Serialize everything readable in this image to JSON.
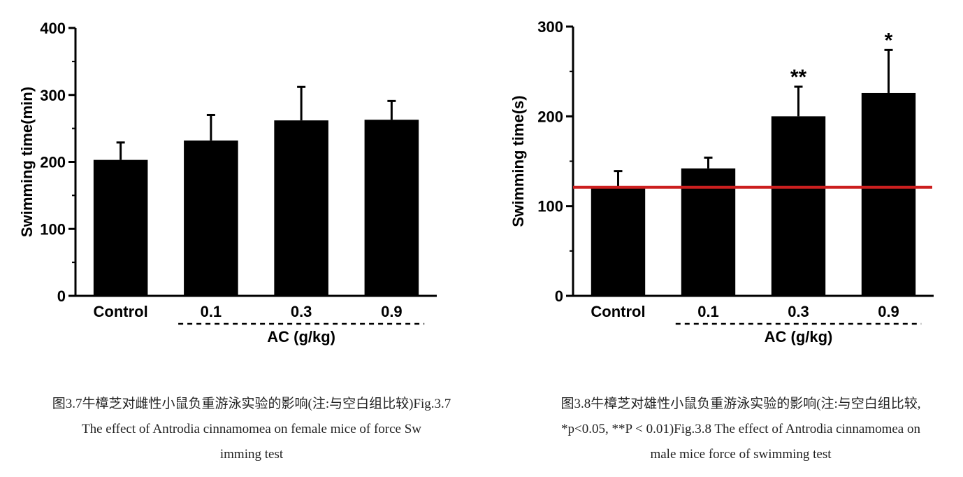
{
  "chart_data": [
    {
      "type": "bar",
      "categories": [
        "Control",
        "0.1",
        "0.3",
        "0.9"
      ],
      "values": [
        203,
        232,
        262,
        263
      ],
      "error": [
        26,
        38,
        50,
        28
      ],
      "significance": [
        "",
        "",
        "",
        ""
      ],
      "ylabel": "Swimming time(min)",
      "group_label": "AC (g/kg)",
      "ylim": [
        0,
        400
      ],
      "yticks": [
        0,
        100,
        200,
        300,
        400
      ],
      "bar_color": "#000000",
      "grid": false
    },
    {
      "type": "bar",
      "categories": [
        "Control",
        "0.1",
        "0.3",
        "0.9"
      ],
      "values": [
        121,
        142,
        200,
        226
      ],
      "error": [
        18,
        12,
        33,
        48
      ],
      "significance": [
        "",
        "",
        "**",
        "*"
      ],
      "ylabel": "Swimming time(s)",
      "group_label": "AC (g/kg)",
      "ylim": [
        0,
        300
      ],
      "yticks": [
        0,
        100,
        200,
        300
      ],
      "reference_line": {
        "value": 121,
        "color": "#cc1f1f"
      },
      "bar_color": "#000000",
      "grid": false
    }
  ],
  "captions": {
    "left": {
      "line1": "图3.7牛樟芝对雌性小鼠负重游泳实验的影响(注:与空白组比较)Fig.3.7",
      "line2": "The effect of Antrodia cinnamomea on female mice of force Sw",
      "line3": "imming test"
    },
    "right": {
      "line1": "图3.8牛樟芝对雄性小鼠负重游泳实验的影响(注:与空白组比较,",
      "line2": "*p<0.05, **P < 0.01)Fig.3.8 The effect of Antrodia cinnamomea on",
      "line3": "male mice force of swimming test"
    }
  }
}
